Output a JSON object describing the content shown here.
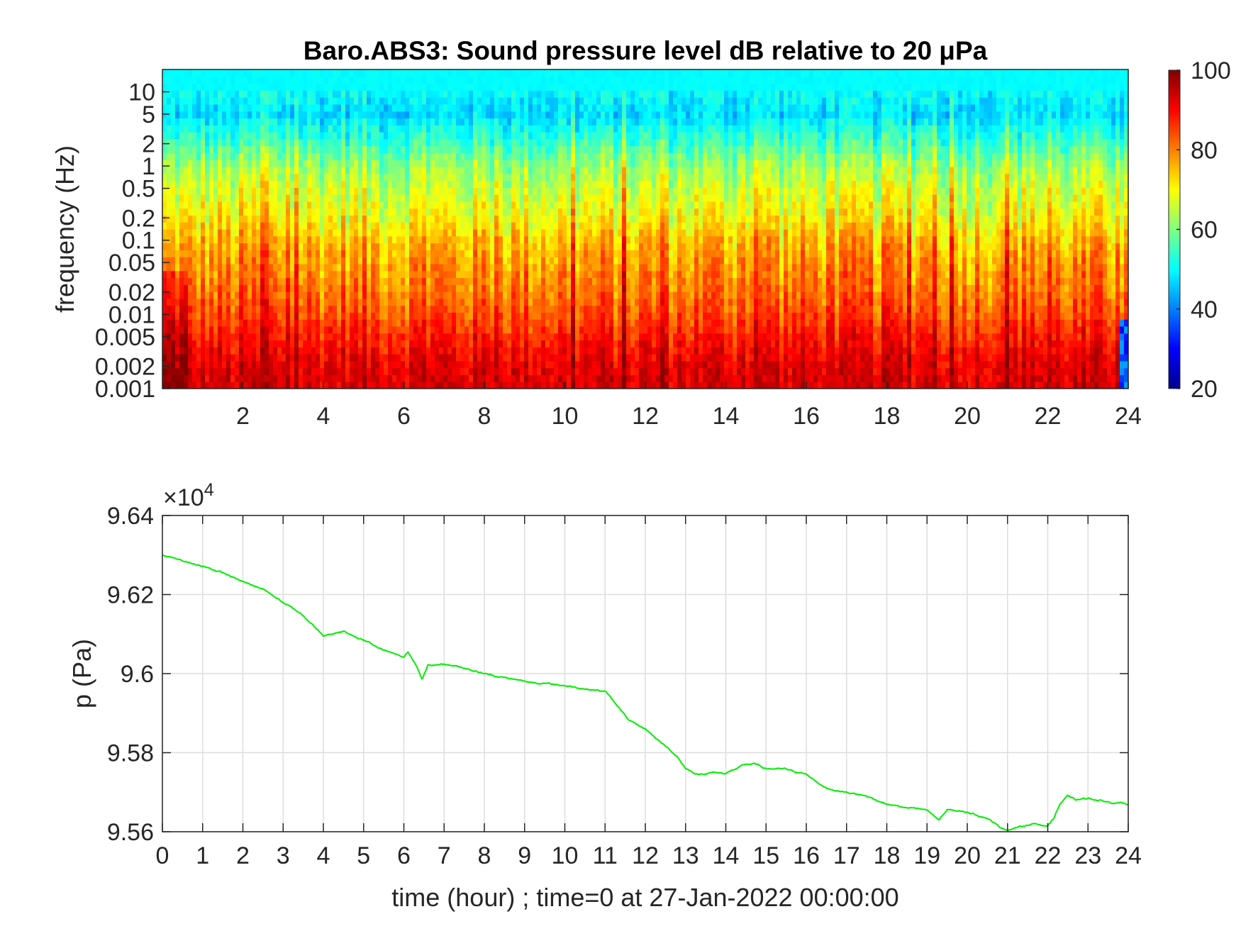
{
  "chart_data": [
    {
      "type": "heatmap",
      "title": "Baro.ABS3: Sound pressure level dB relative to 20 μPa",
      "xlabel": "",
      "ylabel": "frequency (Hz)",
      "xlim": [
        0,
        24
      ],
      "x_ticks": [
        2,
        4,
        6,
        8,
        10,
        12,
        14,
        16,
        18,
        20,
        22,
        24
      ],
      "y_scale": "log",
      "ylim": [
        0.001,
        20
      ],
      "y_ticks": [
        0.001,
        0.002,
        0.005,
        0.01,
        0.02,
        0.05,
        0.1,
        0.2,
        0.5,
        1,
        2,
        5,
        10
      ],
      "y_tick_labels": [
        "0.001",
        "0.002",
        "0.005",
        "0.01",
        "0.02",
        "0.05",
        "0.1",
        "0.2",
        "0.5",
        "1",
        "2",
        "5",
        "10"
      ],
      "colormap": "jet",
      "colorbar": {
        "min": 20,
        "max": 100,
        "ticks": [
          20,
          40,
          60,
          80,
          100
        ]
      },
      "level_profile_db": {
        "freq_hz": [
          0.001,
          0.002,
          0.005,
          0.01,
          0.02,
          0.05,
          0.1,
          0.2,
          0.5,
          1,
          2,
          5,
          10,
          20
        ],
        "median_db": [
          93,
          92,
          88,
          84,
          81,
          78,
          75,
          70,
          66,
          62,
          55,
          47,
          50,
          50
        ]
      }
    },
    {
      "type": "line",
      "title": "",
      "xlabel": "time (hour) ; time=0 at 27-Jan-2022 00:00:00",
      "ylabel": "p (Pa)",
      "xlim": [
        0,
        24
      ],
      "ylim": [
        95600,
        96400
      ],
      "x_ticks": [
        0,
        1,
        2,
        3,
        4,
        5,
        6,
        7,
        8,
        9,
        10,
        11,
        12,
        13,
        14,
        15,
        16,
        17,
        18,
        19,
        20,
        21,
        22,
        23,
        24
      ],
      "y_ticks": [
        95600,
        95800,
        96000,
        96200,
        96400
      ],
      "y_tick_labels": [
        "9.56",
        "9.58",
        "9.6",
        "9.62",
        "9.64"
      ],
      "y_exponent_label": "×10",
      "y_exponent_power": "4",
      "grid": true,
      "line_color": "#00ee00",
      "series": [
        {
          "x": [
            0,
            0.5,
            1,
            1.5,
            2,
            2.5,
            3,
            3.5,
            4,
            4.5,
            5,
            5.5,
            6,
            6.1,
            6.3,
            6.45,
            6.6,
            7,
            7.5,
            8,
            8.5,
            9,
            9.5,
            10,
            10.5,
            11,
            11.3,
            11.6,
            12,
            12.4,
            12.8,
            13,
            13.3,
            13.7,
            14,
            14.5,
            14.7,
            15,
            15.5,
            16,
            16.5,
            17,
            17.5,
            18,
            18.5,
            19,
            19.3,
            19.5,
            20,
            20.5,
            20.8,
            21,
            21.3,
            21.6,
            22,
            22.15,
            22.3,
            22.5,
            22.7,
            23,
            23.5,
            24
          ],
          "y": [
            96300,
            96285,
            96272,
            96255,
            96232,
            96215,
            96180,
            96148,
            96095,
            96108,
            96085,
            96060,
            96040,
            96055,
            96025,
            95985,
            96020,
            96025,
            96015,
            96000,
            95990,
            95980,
            95975,
            95970,
            95962,
            95955,
            95920,
            95880,
            95860,
            95825,
            95790,
            95760,
            95745,
            95750,
            95748,
            95770,
            95772,
            95760,
            95758,
            95745,
            95710,
            95700,
            95690,
            95670,
            95660,
            95655,
            95630,
            95655,
            95650,
            95635,
            95612,
            95605,
            95612,
            95620,
            95615,
            95635,
            95670,
            95690,
            95680,
            95685,
            95675,
            95670
          ]
        }
      ]
    }
  ]
}
